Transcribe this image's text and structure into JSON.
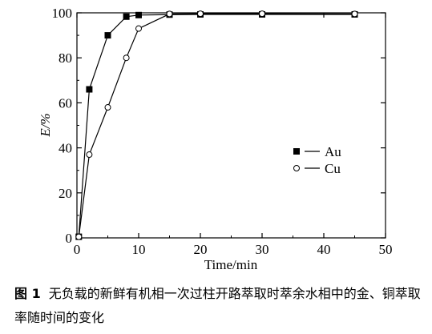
{
  "chart_data": {
    "type": "line",
    "xlabel": "Time/min",
    "ylabel": "E/%",
    "xlim": [
      0,
      50
    ],
    "ylim": [
      0,
      100
    ],
    "x_ticks": [
      0,
      10,
      20,
      30,
      40,
      50
    ],
    "y_ticks": [
      0,
      20,
      40,
      60,
      80,
      100
    ],
    "grid": false,
    "legend_position": "middle-right",
    "series": [
      {
        "name": "Au",
        "marker": "filled-square",
        "x": [
          0.3,
          2,
          5,
          8,
          10,
          15,
          20,
          30,
          45
        ],
        "y": [
          0.5,
          66,
          90,
          98.3,
          99,
          99.2,
          99.3,
          99.3,
          99.3
        ]
      },
      {
        "name": "Cu",
        "marker": "open-circle",
        "x": [
          0.3,
          2,
          5,
          8,
          10,
          15,
          20,
          30,
          45
        ],
        "y": [
          0.5,
          37,
          58,
          80,
          93,
          99.5,
          99.6,
          99.6,
          99.5
        ]
      }
    ]
  },
  "caption": {
    "figure_number": "图 1",
    "text": "无负载的新鲜有机相一次过柱开路萃取时萃余水相中的金、铜萃取率随时间的变化"
  }
}
